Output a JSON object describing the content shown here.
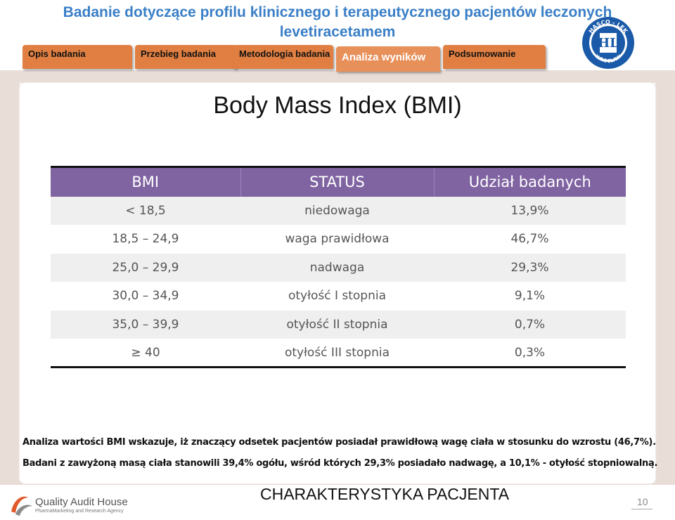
{
  "header": {
    "title_line1": "Badanie dotyczące profilu klinicznego i terapeutycznego pacjentów leczonych",
    "title_line2": "levetiracetamem"
  },
  "logo": {
    "name": "hasco-lek-logo",
    "text_top": "HASCO - LEK",
    "text_bottom": "WROCŁAW",
    "color": "#1a5aa8"
  },
  "tabs": [
    {
      "label": "Opis badania"
    },
    {
      "label": "Przebieg badania"
    },
    {
      "label": "Metodologia badania"
    },
    {
      "label": "Analiza wyników",
      "active": true
    },
    {
      "label": "Podsumowanie"
    }
  ],
  "slide": {
    "title": "Body Mass Index (BMI)"
  },
  "table": {
    "headers": [
      "BMI",
      "STATUS",
      "Udział badanych"
    ],
    "rows": [
      {
        "bmi": "< 18,5",
        "status": "niedowaga",
        "share": "13,9%"
      },
      {
        "bmi": "18,5 – 24,9",
        "status": "waga prawidłowa",
        "share": "46,7%"
      },
      {
        "bmi": "25,0 – 29,9",
        "status": "nadwaga",
        "share": "29,3%"
      },
      {
        "bmi": "30,0 – 34,9",
        "status": "otyłość I stopnia",
        "share": "9,1%"
      },
      {
        "bmi": "35,0 – 39,9",
        "status": "otyłość II stopnia",
        "share": "0,7%"
      },
      {
        "bmi": "≥ 40",
        "status": "otyłość III stopnia",
        "share": "0,3%"
      }
    ],
    "header_color": "#8064a2"
  },
  "notes": {
    "line1": "Analiza wartości BMI wskazuje, iż znaczący odsetek pacjentów posiadał prawidłową wagę ciała w stosunku do wzrostu (46,7%).",
    "line2": "Badani z zawyżoną masą ciała stanowili 39,4% ogółu, wśród których 29,3% posiadało nadwagę, a 10,1% - otyłość stopniowalną."
  },
  "footer": {
    "company": "Quality Audit House",
    "company_sub": "PharmaMarketing and Research Agency",
    "title": "CHARAKTERYSTYKA PACJENTA",
    "page": "10"
  }
}
